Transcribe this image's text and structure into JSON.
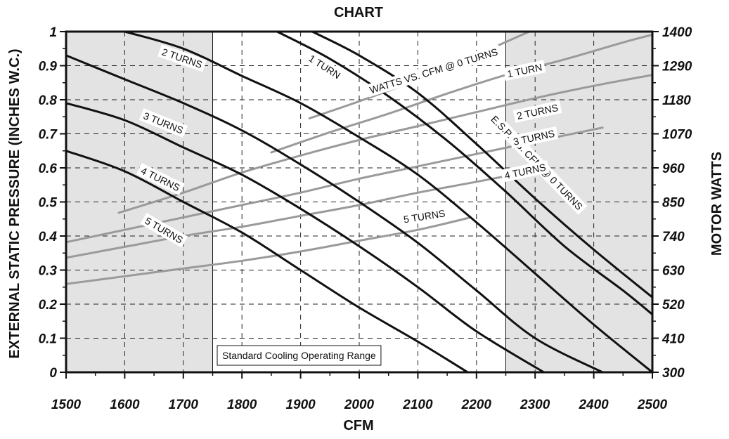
{
  "chart_data": {
    "type": "line",
    "title": "CHART",
    "xlabel": "CFM",
    "ylabel": "EXTERNAL STATIC PRESSURE (INCHES W.C.)",
    "y2label": "MOTOR WATTS",
    "xlim": [
      1500,
      2500
    ],
    "ylim": [
      0,
      1
    ],
    "y2lim": [
      300,
      1400
    ],
    "x_ticks": [
      1500,
      1600,
      1700,
      1800,
      1900,
      2000,
      2100,
      2200,
      2300,
      2400,
      2500
    ],
    "y_ticks": [
      "0",
      "0.1",
      "0.2",
      "0.3",
      "0.4",
      "0.5",
      "0.6",
      "0.7",
      "0.8",
      "0.9",
      "1"
    ],
    "y2_ticks": [
      "300",
      "410",
      "520",
      "630",
      "740",
      "850",
      "960",
      "1070",
      "1180",
      "1290",
      "1400"
    ],
    "grid": true,
    "shaded_ranges": [
      [
        1500,
        1750
      ],
      [
        2250,
        2500
      ]
    ],
    "range_label": "Standard Cooling Operating Range",
    "colors": {
      "pressure": "#111111",
      "watts": "#9a9a9a",
      "shade": "#e3e3e3"
    },
    "pressure_series": [
      {
        "label": "E.S.P. VS. CFM @ 0 TURNS",
        "x": [
          1920,
          2000,
          2100,
          2200,
          2300,
          2400,
          2500
        ],
        "y": [
          1.0,
          0.93,
          0.82,
          0.67,
          0.51,
          0.36,
          0.22
        ]
      },
      {
        "label": "1 TURN",
        "x": [
          1860,
          1950,
          2050,
          2150,
          2250,
          2350,
          2450,
          2500
        ],
        "y": [
          1.0,
          0.92,
          0.81,
          0.68,
          0.53,
          0.37,
          0.24,
          0.17
        ]
      },
      {
        "label": "2 TURNS",
        "x": [
          1600,
          1700,
          1800,
          1900,
          2000,
          2100,
          2200,
          2300,
          2400,
          2500
        ],
        "y": [
          1.0,
          0.95,
          0.87,
          0.79,
          0.69,
          0.58,
          0.44,
          0.29,
          0.14,
          0.0
        ]
      },
      {
        "label": "3 TURNS",
        "x": [
          1500,
          1600,
          1700,
          1800,
          1900,
          2000,
          2100,
          2200,
          2300,
          2415
        ],
        "y": [
          0.93,
          0.86,
          0.79,
          0.71,
          0.61,
          0.5,
          0.38,
          0.24,
          0.1,
          0.0
        ]
      },
      {
        "label": "4 TURNS",
        "x": [
          1500,
          1600,
          1700,
          1800,
          1900,
          2000,
          2100,
          2200,
          2315
        ],
        "y": [
          0.79,
          0.74,
          0.66,
          0.58,
          0.48,
          0.37,
          0.25,
          0.12,
          0.0
        ]
      },
      {
        "label": "5 TURNS",
        "x": [
          1500,
          1600,
          1700,
          1800,
          1900,
          2000,
          2100,
          2185
        ],
        "y": [
          0.65,
          0.59,
          0.5,
          0.41,
          0.3,
          0.19,
          0.09,
          0.0
        ]
      }
    ],
    "watts_series": [
      {
        "label": "WATTS VS. CFM @ 0 TURNS",
        "x": [
          1915,
          2000,
          2100,
          2200,
          2290
        ],
        "y": [
          1120,
          1175,
          1245,
          1325,
          1400
        ]
      },
      {
        "label": "1 TURN",
        "x": [
          1850,
          1950,
          2050,
          2150,
          2250,
          2350,
          2450,
          2500
        ],
        "y": [
          1010,
          1075,
          1135,
          1200,
          1260,
          1310,
          1365,
          1390
        ]
      },
      {
        "label": "2 TURNS",
        "x": [
          1590,
          1700,
          1800,
          1900,
          2000,
          2100,
          2200,
          2300,
          2400,
          2500
        ],
        "y": [
          815,
          880,
          945,
          1000,
          1050,
          1095,
          1140,
          1185,
          1225,
          1260
        ]
      },
      {
        "label": "3 TURNS",
        "x": [
          1500,
          1600,
          1700,
          1800,
          1900,
          2000,
          2100,
          2200,
          2300,
          2415
        ],
        "y": [
          720,
          760,
          800,
          840,
          880,
          925,
          965,
          1005,
          1045,
          1090
        ]
      },
      {
        "label": "4 TURNS",
        "x": [
          1500,
          1600,
          1700,
          1800,
          1900,
          2000,
          2100,
          2200,
          2310
        ],
        "y": [
          670,
          705,
          740,
          770,
          805,
          840,
          880,
          915,
          955
        ]
      },
      {
        "label": "5 TURNS",
        "x": [
          1500,
          1600,
          1700,
          1800,
          1900,
          2000,
          2100,
          2190
        ],
        "y": [
          585,
          610,
          635,
          660,
          690,
          725,
          760,
          800
        ]
      }
    ]
  }
}
